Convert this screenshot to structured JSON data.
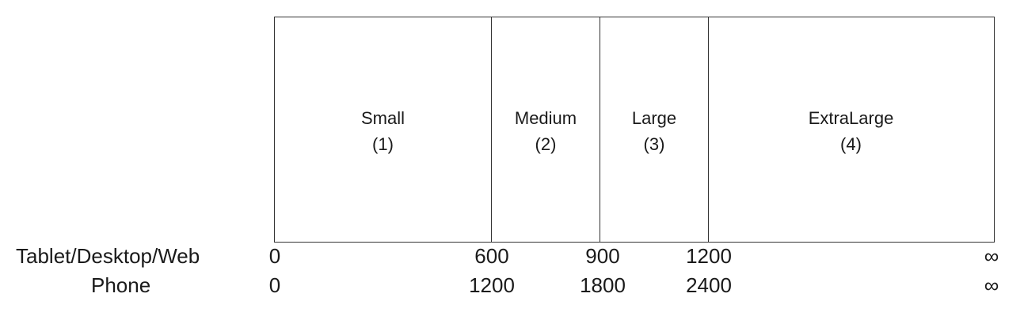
{
  "segments": [
    {
      "name": "Small",
      "index": "(1)"
    },
    {
      "name": "Medium",
      "index": "(2)"
    },
    {
      "name": "Large",
      "index": "(3)"
    },
    {
      "name": "ExtraLarge",
      "index": "(4)"
    }
  ],
  "rows": [
    {
      "label": "Tablet/Desktop/Web",
      "ticks": [
        "0",
        "600",
        "900",
        "1200",
        "∞"
      ]
    },
    {
      "label": "Phone",
      "ticks": [
        "0",
        "1200",
        "1800",
        "2400",
        "∞"
      ]
    }
  ]
}
